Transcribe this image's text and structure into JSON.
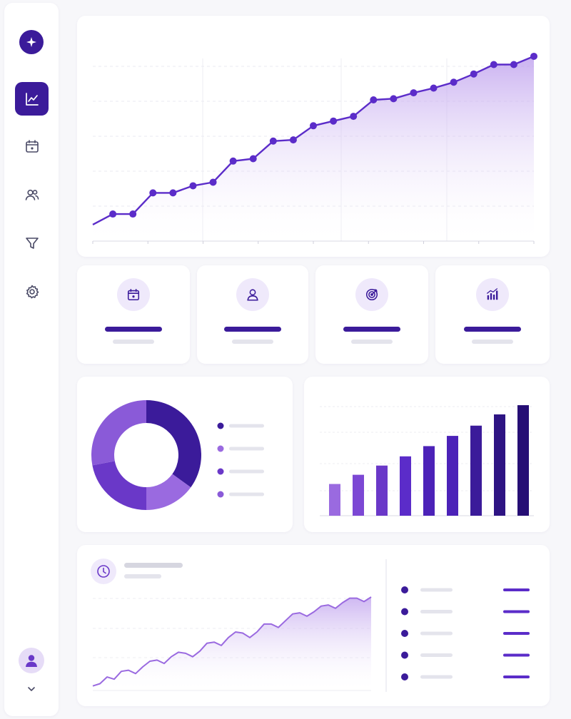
{
  "colors": {
    "accent": "#3b1b9a",
    "accent_mid": "#5b2cc9",
    "accent_light": "#9a6ae0",
    "area_fill": "#cdb5f1",
    "placeholder": "#e4e4ec",
    "background": "#f7f7fa"
  },
  "sidebar": {
    "logo_icon": "sparkle-icon",
    "items": [
      {
        "icon": "line-chart-icon",
        "active": true
      },
      {
        "icon": "calendar-icon",
        "active": false
      },
      {
        "icon": "users-icon",
        "active": false
      },
      {
        "icon": "filter-icon",
        "active": false
      },
      {
        "icon": "gear-icon",
        "active": false
      }
    ],
    "avatar_icon": "user-avatar-icon",
    "expand_icon": "chevron-down-icon"
  },
  "stat_cards": [
    {
      "icon": "calendar-icon"
    },
    {
      "icon": "user-icon"
    },
    {
      "icon": "target-icon"
    },
    {
      "icon": "bar-chart-icon"
    }
  ],
  "chart_data": [
    {
      "type": "line",
      "title": "",
      "xlabel": "",
      "ylabel": "",
      "grid": true,
      "x": [
        0,
        1,
        2,
        3,
        4,
        5,
        6,
        7,
        8,
        9,
        10,
        11,
        12,
        13,
        14,
        15,
        16,
        17,
        18,
        19,
        20,
        21,
        22
      ],
      "y": [
        14,
        23,
        23,
        41,
        41,
        47,
        50,
        68,
        70,
        85,
        86,
        98,
        102,
        106,
        120,
        121,
        126,
        130,
        135,
        142,
        150,
        150,
        157
      ],
      "ylim": [
        0,
        160
      ],
      "markers": true,
      "area": true
    },
    {
      "type": "pie",
      "donut": true,
      "values": [
        35,
        15,
        22,
        28
      ],
      "colors": [
        "#3b1b9a",
        "#9a6ae0",
        "#6a38c8",
        "#8a5ad8"
      ],
      "legend_placement": "right"
    },
    {
      "type": "bar",
      "values": [
        31,
        40,
        49,
        58,
        68,
        78,
        88,
        99,
        108
      ],
      "ylim": [
        0,
        115
      ],
      "grid": true,
      "colors": [
        "#9a6ae0",
        "#7c48d4",
        "#6a38c8",
        "#5b2cc9",
        "#4c22b8",
        "#4c22b8",
        "#3b1b9a",
        "#2e1483",
        "#260e75"
      ]
    },
    {
      "type": "area",
      "x": [
        0,
        1,
        2,
        3,
        4,
        5,
        6,
        7,
        8,
        9,
        10,
        11,
        12,
        13,
        14,
        15,
        16,
        17,
        18,
        19,
        20,
        21,
        22,
        23,
        24,
        25,
        26,
        27,
        28,
        29,
        30,
        31,
        32,
        33,
        34,
        35,
        36,
        37,
        38,
        39
      ],
      "y": [
        4,
        6,
        12,
        10,
        17,
        18,
        15,
        21,
        26,
        27,
        24,
        30,
        34,
        33,
        30,
        35,
        42,
        43,
        40,
        47,
        52,
        51,
        47,
        52,
        59,
        59,
        56,
        62,
        68,
        69,
        66,
        70,
        75,
        76,
        73,
        78,
        82,
        82,
        79,
        83
      ],
      "ylim": [
        0,
        90
      ],
      "grid": true
    }
  ],
  "bottom_card": {
    "icon": "clock-icon",
    "list_icon": "bullet-dot-icon",
    "list_rows": 5
  }
}
